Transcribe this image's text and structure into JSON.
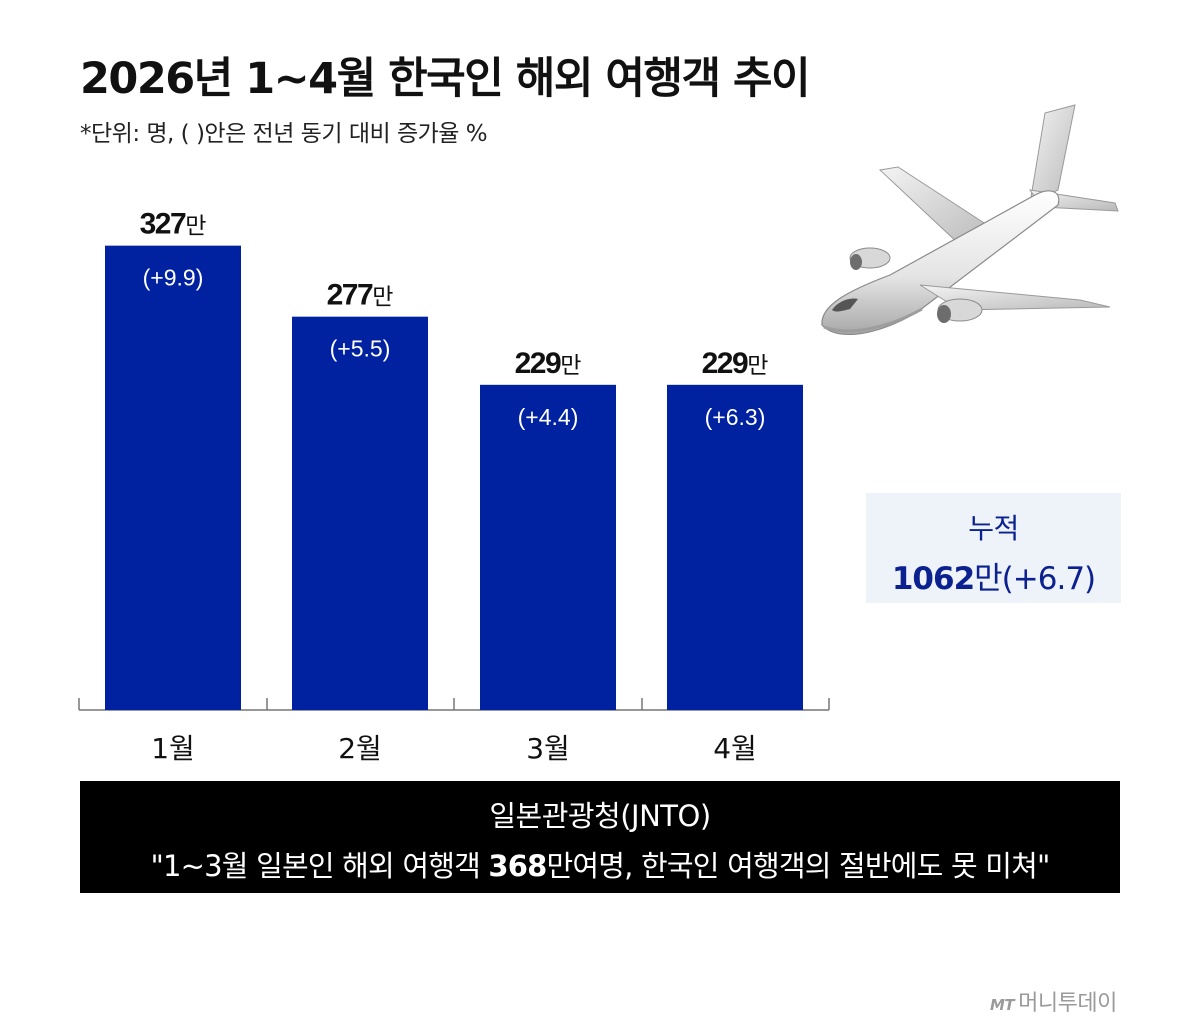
{
  "title": "2026년 1~4월 한국인 해외 여행객 추이",
  "subtitle": "*단위: 명, ( )안은 전년 동기 대비 증가율 %",
  "chart_data": {
    "type": "bar",
    "categories": [
      "1월",
      "2월",
      "3월",
      "4월"
    ],
    "values": [
      327,
      277,
      229,
      229
    ],
    "value_unit": "만",
    "growth_rates": [
      "(+9.9)",
      "(+5.5)",
      "(+4.4)",
      "(+6.3)"
    ],
    "bar_color": "#0022a0",
    "title": "2026년 1~4월 한국인 해외 여행객 추이",
    "xlabel": "",
    "ylabel": "",
    "ylim": [
      0,
      350
    ],
    "grid": false
  },
  "summary": {
    "label": "누적",
    "value": "1062",
    "unit": "만",
    "rate": "(+6.7)"
  },
  "note": {
    "source": "일본관광청(JNTO)",
    "quote_before": "\"1~3월 일본인 해외 여행객 ",
    "quote_bold": "368",
    "quote_after": "만여명, 한국인 여행객의 절반에도 못 미쳐\""
  },
  "watermark": {
    "mt": "MT",
    "name": "머니투데이"
  },
  "colors": {
    "accent": "#0022a0",
    "summary_text": "#0b2190",
    "summary_bg": "#eef2f9",
    "note_bg": "#000000"
  },
  "icons": [
    "airplane-icon"
  ]
}
